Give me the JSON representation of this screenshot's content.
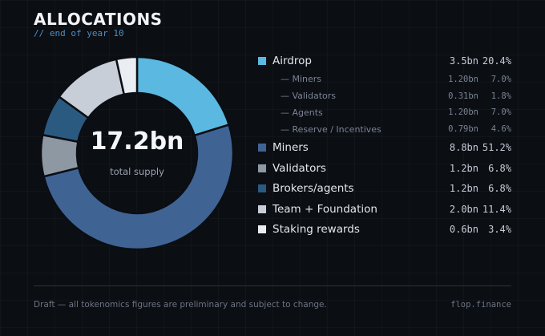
{
  "header": {
    "title": "ALLOCATIONS",
    "subtitle": "// end of year 10"
  },
  "center": {
    "value": "17.2bn",
    "caption": "total supply"
  },
  "legend": {
    "airdrop": {
      "label": "Airdrop",
      "amount": "3.5bn",
      "percent": "20.4%",
      "color": "#5bb8e0"
    },
    "airdrop_sub": [
      {
        "label": "— Miners",
        "amount": "1.20bn",
        "percent": "7.0%"
      },
      {
        "label": "— Validators",
        "amount": "0.31bn",
        "percent": "1.8%"
      },
      {
        "label": "— Agents",
        "amount": "1.20bn",
        "percent": "7.0%"
      },
      {
        "label": "— Reserve / Incentives",
        "amount": "0.79bn",
        "percent": "4.6%"
      }
    ],
    "miners": {
      "label": "Miners",
      "amount": "8.8bn",
      "percent": "51.2%",
      "color": "#3f6494"
    },
    "validators": {
      "label": "Validators",
      "amount": "1.2bn",
      "percent": "6.8%",
      "color": "#8e98a3"
    },
    "brokers": {
      "label": "Brokers/agents",
      "amount": "1.2bn",
      "percent": "6.8%",
      "color": "#2a5a80"
    },
    "team": {
      "label": "Team + Foundation",
      "amount": "2.0bn",
      "percent": "11.4%",
      "color": "#c8ced7"
    },
    "staking": {
      "label": "Staking rewards",
      "amount": "0.6bn",
      "percent": "3.4%",
      "color": "#eaedf2"
    }
  },
  "footer": {
    "note": "Draft — all tokenomics figures are preliminary and subject to change.",
    "brand": "flop.finance"
  },
  "chart_data": {
    "type": "pie",
    "variant": "donut",
    "center_label": "17.2bn",
    "center_caption": "total supply",
    "unit": "bn",
    "slices": [
      {
        "label": "Airdrop",
        "value": 3.5,
        "percent": 20.4,
        "color": "#5bb8e0"
      },
      {
        "label": "Miners",
        "value": 8.8,
        "percent": 51.2,
        "color": "#3f6494"
      },
      {
        "label": "Validators",
        "value": 1.2,
        "percent": 6.8,
        "color": "#8e98a3"
      },
      {
        "label": "Brokers/agents",
        "value": 1.2,
        "percent": 6.8,
        "color": "#2a5a80"
      },
      {
        "label": "Team + Foundation",
        "value": 2.0,
        "percent": 11.4,
        "color": "#c8ced7"
      },
      {
        "label": "Staking rewards",
        "value": 0.6,
        "percent": 3.4,
        "color": "#eaedf2"
      }
    ],
    "legend_position": "right"
  }
}
